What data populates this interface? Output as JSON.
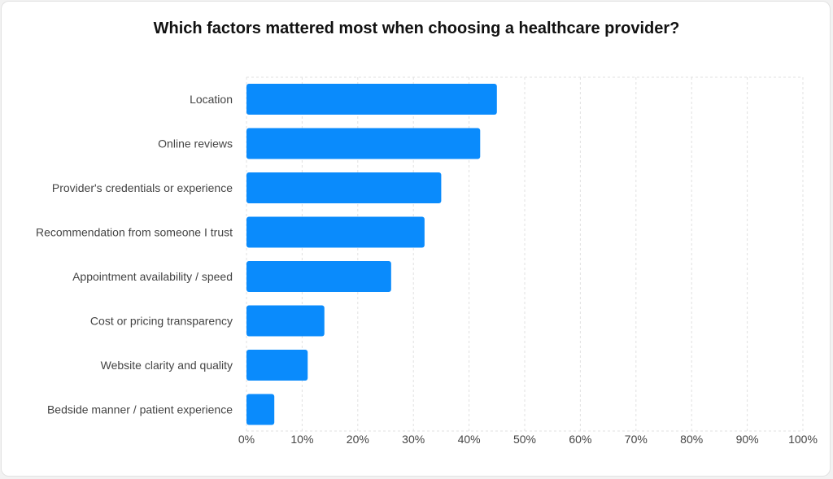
{
  "chart_data": {
    "type": "bar",
    "orientation": "horizontal",
    "title": "Which factors mattered most when choosing a healthcare provider?",
    "categories": [
      "Location",
      "Online reviews",
      "Provider's credentials or experience",
      "Recommendation from someone I trust",
      "Appointment availability / speed",
      "Cost or pricing transparency",
      "Website clarity and quality",
      "Bedside manner / patient experience"
    ],
    "values": [
      45,
      42,
      35,
      32,
      26,
      14,
      11,
      5
    ],
    "xlim": [
      0,
      100
    ],
    "xticks": [
      "0%",
      "10%",
      "20%",
      "30%",
      "40%",
      "50%",
      "60%",
      "70%",
      "80%",
      "90%",
      "100%"
    ],
    "grid": true,
    "bar_color": "#0a8bfc"
  }
}
